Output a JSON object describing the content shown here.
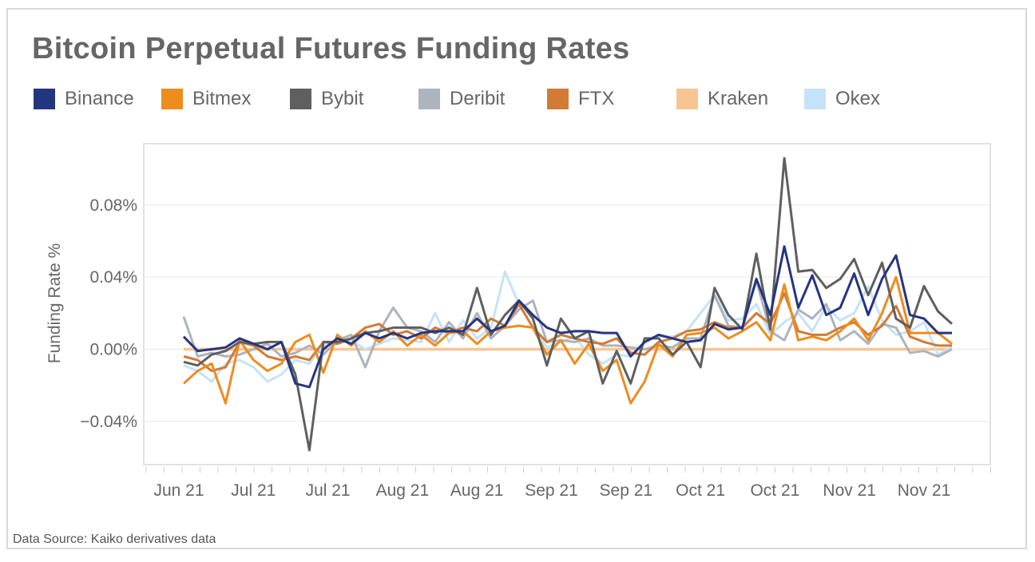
{
  "chart_data": {
    "type": "line",
    "title": "Bitcoin Perpetual Futures Funding Rates",
    "ylabel": "Funding Rate %",
    "xlabel": "",
    "ylim": [
      -0.064,
      0.114
    ],
    "yticks": [
      "0.08%",
      "0.04%",
      "0.00%",
      "−0.04%"
    ],
    "ytick_values": [
      0.08,
      0.04,
      0.0,
      -0.04
    ],
    "xtick_labels": [
      "Jun 21",
      "Jul 21",
      "Jul 21",
      "Aug 21",
      "Aug 21",
      "Sep 21",
      "Sep 21",
      "Oct 21",
      "Oct 21",
      "Nov 21",
      "Nov 21"
    ],
    "grid": true,
    "legend": "top",
    "source": "Data Source: Kaiko derivatives data",
    "x": [
      "2021-06-10",
      "2021-06-13",
      "2021-06-16",
      "2021-06-19",
      "2021-06-22",
      "2021-06-25",
      "2021-06-28",
      "2021-07-01",
      "2021-07-04",
      "2021-07-07",
      "2021-07-10",
      "2021-07-13",
      "2021-07-16",
      "2021-07-19",
      "2021-07-22",
      "2021-07-25",
      "2021-07-28",
      "2021-07-31",
      "2021-08-03",
      "2021-08-06",
      "2021-08-09",
      "2021-08-12",
      "2021-08-15",
      "2021-08-18",
      "2021-08-21",
      "2021-08-24",
      "2021-08-27",
      "2021-08-30",
      "2021-09-02",
      "2021-09-05",
      "2021-09-08",
      "2021-09-11",
      "2021-09-14",
      "2021-09-17",
      "2021-09-20",
      "2021-09-23",
      "2021-09-26",
      "2021-09-29",
      "2021-10-02",
      "2021-10-05",
      "2021-10-08",
      "2021-10-11",
      "2021-10-14",
      "2021-10-17",
      "2021-10-20",
      "2021-10-23",
      "2021-10-26",
      "2021-10-29",
      "2021-11-01",
      "2021-11-04",
      "2021-11-07",
      "2021-11-10",
      "2021-11-13",
      "2021-11-16",
      "2021-11-19",
      "2021-11-22"
    ],
    "series": [
      {
        "name": "Kraken",
        "color": "#f6c593",
        "values": [
          0,
          0,
          0,
          0,
          0,
          0,
          0,
          0,
          0,
          0,
          0,
          0,
          0,
          0,
          0,
          0,
          0,
          0,
          0,
          0,
          0,
          0,
          0,
          0,
          0,
          0,
          0,
          0,
          0,
          0,
          0,
          0,
          0,
          0,
          0,
          0,
          0,
          0,
          0,
          0,
          0,
          0,
          0,
          0,
          0,
          0,
          0,
          0,
          0,
          0,
          0,
          0,
          0,
          0,
          0,
          0
        ]
      },
      {
        "name": "Okex",
        "color": "#c5e3f8",
        "values": [
          -0.009,
          -0.012,
          -0.018,
          -0.008,
          -0.006,
          -0.01,
          -0.018,
          -0.014,
          -0.006,
          -0.008,
          0.002,
          0.003,
          0.005,
          0.0,
          0.003,
          0.006,
          0.005,
          0.004,
          0.02,
          0.004,
          0.016,
          0.006,
          0.012,
          0.043,
          0.025,
          0.012,
          0.001,
          0.004,
          0.007,
          -0.003,
          -0.008,
          -0.003,
          -0.004,
          0.004,
          0.007,
          0.007,
          0.01,
          0.02,
          0.03,
          0.016,
          0.017,
          0.025,
          0.008,
          0.015,
          0.02,
          0.01,
          0.024,
          0.016,
          0.02,
          0.035,
          0.016,
          0.008,
          0.01,
          0.015,
          -0.003,
          0.001
        ]
      },
      {
        "name": "Deribit",
        "color": "#adb4bd",
        "values": [
          0.018,
          -0.004,
          -0.002,
          -0.004,
          -0.003,
          0.0,
          0.003,
          -0.004,
          -0.002,
          0.002,
          -0.003,
          0.005,
          0.008,
          -0.01,
          0.01,
          0.023,
          0.012,
          0.01,
          0.004,
          0.015,
          0.006,
          0.02,
          0.006,
          0.013,
          0.022,
          0.027,
          0.004,
          0.005,
          0.004,
          0.006,
          0.002,
          0.002,
          0.001,
          0.0,
          0.002,
          0.001,
          0.006,
          0.006,
          0.03,
          0.013,
          0.012,
          0.038,
          0.01,
          0.005,
          0.022,
          0.017,
          0.025,
          0.005,
          0.01,
          0.003,
          0.014,
          0.012,
          -0.002,
          -0.001,
          -0.004,
          0.0
        ]
      },
      {
        "name": "FTX",
        "color": "#d37a35",
        "values": [
          -0.004,
          -0.006,
          -0.012,
          -0.01,
          0.004,
          0.002,
          -0.004,
          -0.006,
          -0.004,
          -0.006,
          0.004,
          0.003,
          0.006,
          0.012,
          0.014,
          0.008,
          0.01,
          0.006,
          0.012,
          0.009,
          0.012,
          0.01,
          0.017,
          0.013,
          0.025,
          0.012,
          0.004,
          0.008,
          0.006,
          0.004,
          0.003,
          0.006,
          -0.002,
          -0.003,
          0.004,
          0.006,
          0.01,
          0.011,
          0.015,
          0.012,
          0.012,
          0.02,
          0.014,
          0.031,
          0.01,
          0.008,
          0.008,
          0.012,
          0.015,
          0.008,
          0.013,
          0.024,
          0.007,
          0.004,
          0.002,
          0.002
        ]
      },
      {
        "name": "Bitmex",
        "color": "#ee8c1e",
        "values": [
          -0.019,
          -0.012,
          -0.008,
          -0.03,
          0.005,
          -0.006,
          -0.012,
          -0.008,
          0.004,
          0.008,
          -0.013,
          0.008,
          0.002,
          0.01,
          0.004,
          0.01,
          0.002,
          0.008,
          0.002,
          0.009,
          0.01,
          0.003,
          0.01,
          0.012,
          0.013,
          0.012,
          -0.003,
          0.005,
          -0.008,
          0.003,
          -0.012,
          -0.006,
          -0.03,
          -0.018,
          0.003,
          -0.004,
          0.008,
          0.009,
          0.012,
          0.006,
          0.01,
          0.015,
          0.005,
          0.036,
          0.005,
          0.007,
          0.005,
          0.01,
          0.017,
          0.005,
          0.02,
          0.04,
          0.009,
          0.009,
          0.009,
          0.003
        ]
      },
      {
        "name": "Bybit",
        "color": "#5f5f5f",
        "values": [
          -0.007,
          -0.009,
          -0.003,
          -0.001,
          0.004,
          0.003,
          0.004,
          0.004,
          -0.014,
          -0.056,
          0.004,
          0.004,
          0.006,
          0.009,
          0.01,
          0.012,
          0.012,
          0.012,
          0.009,
          0.012,
          0.008,
          0.034,
          0.008,
          0.019,
          0.027,
          0.017,
          -0.009,
          0.017,
          0.006,
          0.01,
          -0.019,
          -0.001,
          -0.019,
          0.006,
          0.006,
          -0.003,
          0.004,
          -0.01,
          0.034,
          0.019,
          0.011,
          0.053,
          0.011,
          0.106,
          0.043,
          0.044,
          0.034,
          0.039,
          0.05,
          0.03,
          0.048,
          0.017,
          0.012,
          0.035,
          0.021,
          0.014
        ]
      },
      {
        "name": "Binance",
        "color": "#243580",
        "values": [
          0.007,
          -0.001,
          0.0,
          0.001,
          0.006,
          0.003,
          0.0,
          0.004,
          -0.019,
          -0.021,
          0.0,
          0.006,
          0.003,
          0.009,
          0.006,
          0.009,
          0.006,
          0.009,
          0.01,
          0.01,
          0.01,
          0.017,
          0.01,
          0.013,
          0.027,
          0.019,
          0.012,
          0.009,
          0.01,
          0.01,
          0.009,
          0.009,
          -0.004,
          0.004,
          0.008,
          0.006,
          0.004,
          0.005,
          0.014,
          0.011,
          0.012,
          0.039,
          0.019,
          0.057,
          0.023,
          0.041,
          0.019,
          0.023,
          0.042,
          0.019,
          0.039,
          0.052,
          0.019,
          0.017,
          0.009,
          0.009
        ]
      }
    ]
  },
  "legend_order": [
    "Binance",
    "Bitmex",
    "Bybit",
    "Deribit",
    "FTX",
    "Kraken",
    "Okex"
  ]
}
